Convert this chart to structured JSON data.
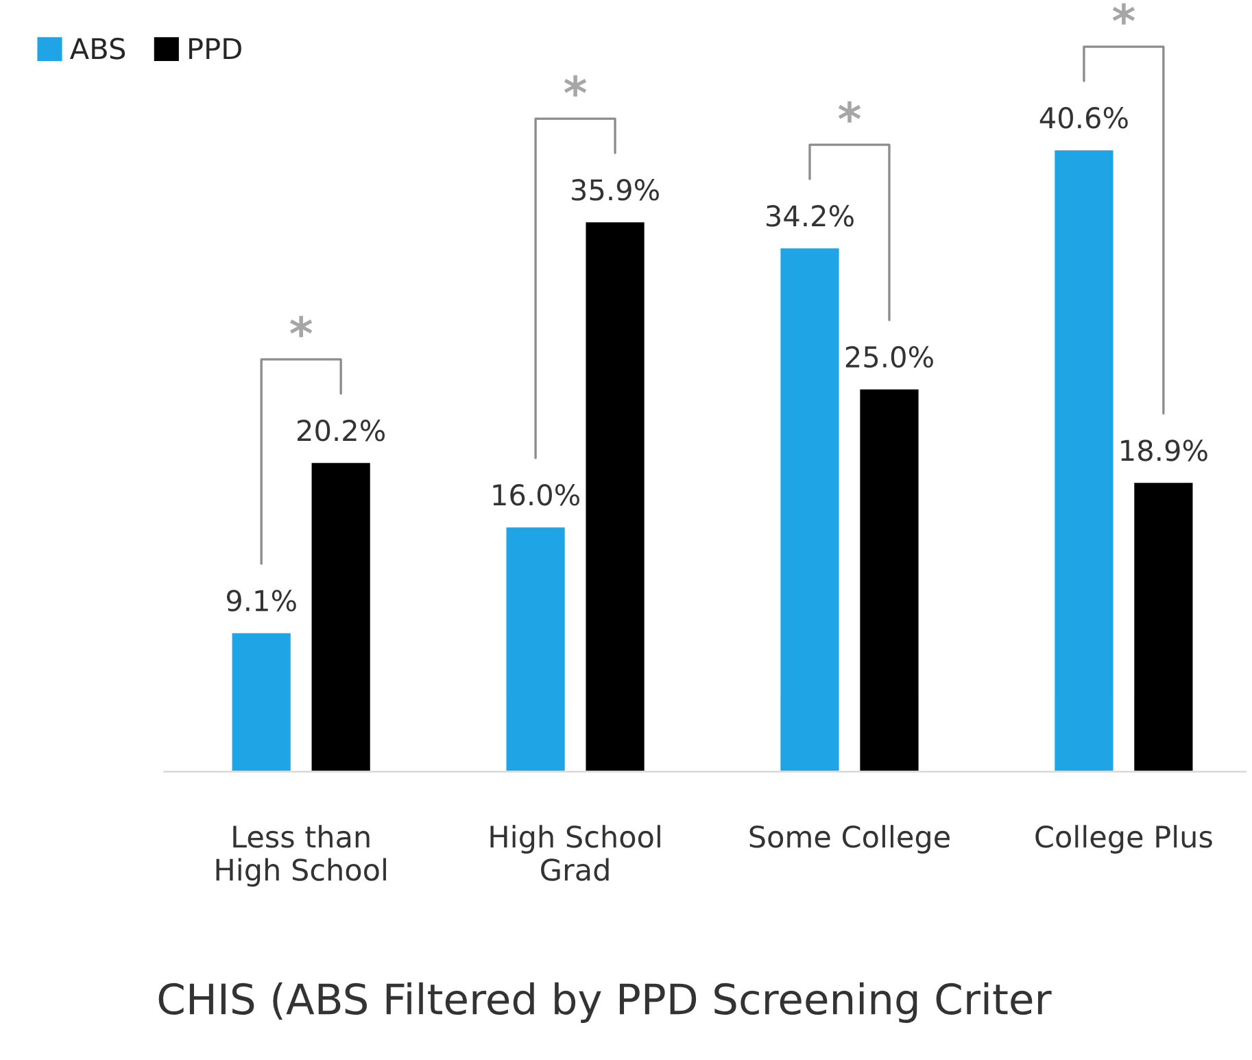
{
  "chart_data": {
    "type": "bar",
    "title": "CHIS (ABS Filtered by PPD Screening Criter",
    "categories": [
      "Less than\nHigh School",
      "High School\nGrad",
      "Some College",
      "College Plus"
    ],
    "series": [
      {
        "name": "ABS",
        "color": "#1fa4e6",
        "values": [
          9.1,
          16.0,
          34.2,
          40.6
        ],
        "value_labels": [
          "9.1%",
          "16.0%",
          "34.2%",
          "40.6%"
        ]
      },
      {
        "name": "PPD",
        "color": "#000000",
        "values": [
          20.2,
          35.9,
          25.0,
          18.9
        ],
        "value_labels": [
          "20.2%",
          "35.9%",
          "25.0%",
          "18.9%"
        ]
      }
    ],
    "annotations": [
      "*",
      "*",
      "*",
      "*"
    ],
    "legend": "top left",
    "grid": false
  }
}
